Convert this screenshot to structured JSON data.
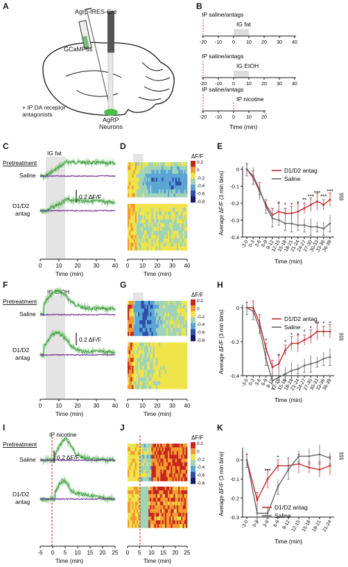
{
  "panel_letters": [
    "A",
    "B",
    "C",
    "D",
    "E",
    "F",
    "G",
    "H",
    "I",
    "J",
    "K"
  ],
  "panel_a": {
    "mouse_line": "Agrp-IRES-Cre",
    "virus": "GCaMP6s",
    "treatment": "+ IP DA receptor antagonists",
    "neurons_line1": "AgRP",
    "neurons_line2": "Neurons"
  },
  "panel_b": {
    "timelines": [
      {
        "pre": "IP saline/antags",
        "stim": "IG fat"
      },
      {
        "pre": "IP saline/antags",
        "stim": "IG EtOH"
      },
      {
        "pre": "IP saline/antags",
        "stim": "IP nicotine"
      }
    ],
    "ticks": [
      "-20",
      "-10",
      "0",
      "10",
      "20",
      "30",
      "40"
    ],
    "ticks_short": [
      "-20",
      "-10",
      "0",
      "10",
      "20"
    ],
    "xlabel": "Time (min)"
  },
  "traces": {
    "pretreatment": "Pretreatment",
    "saline": "Saline",
    "antag_line1": "D1/D2",
    "antag_line2": "antag",
    "scale": "0.2 ΔF/F",
    "xlabel": "Time (min)",
    "c_stim": "IG fat",
    "f_stim": "IG EtOH",
    "i_stim": "IP nicotine",
    "ticks_40": [
      "0",
      "10",
      "20",
      "30",
      "40"
    ],
    "ticks_25": [
      "-5",
      "0",
      "5",
      "10",
      "15",
      "20",
      "25"
    ]
  },
  "heatmaps": {
    "label": "ΔF/F",
    "scale_ticks": [
      "0.2",
      "0",
      "-0.2",
      "-0.4",
      "-0.6",
      "-0.8"
    ],
    "xlabel": "Time (min)",
    "ticks_40": [
      "0",
      "10",
      "20",
      "30",
      "40"
    ],
    "ticks_25": [
      "0",
      "5",
      "10",
      "15",
      "20",
      "25"
    ]
  },
  "stats": {
    "ylabel": "Average ΔF/F (3 min bins)",
    "xlabel": "Time (min)",
    "sig": "§§§",
    "legend_antag": "D1/D2 antag",
    "legend_saline": "Saline",
    "colors": {
      "antag": "#c0272d",
      "saline": "#666666",
      "purple": "#7b3fa0",
      "green": "#3f9a3f"
    }
  },
  "chart_data": [
    {
      "type": "line",
      "panel": "E",
      "categories": [
        "-3-0",
        "0-3",
        "3-6",
        "6-9",
        "9-12",
        "12-15",
        "15-18",
        "18-21",
        "21-24",
        "24-27",
        "27-30",
        "30-33",
        "33-36",
        "36-39"
      ],
      "ylim": [
        -0.4,
        0.0
      ],
      "yticks": [
        "0",
        "-0.1",
        "-0.2",
        "-0.3",
        "-0.4"
      ],
      "series": [
        {
          "name": "D1/D2 antag",
          "values": [
            0,
            -0.05,
            -0.13,
            -0.21,
            -0.27,
            -0.25,
            -0.26,
            -0.26,
            -0.25,
            -0.23,
            -0.21,
            -0.19,
            -0.21,
            -0.18
          ]
        },
        {
          "name": "Saline",
          "values": [
            0,
            -0.04,
            -0.12,
            -0.22,
            -0.29,
            -0.3,
            -0.32,
            -0.32,
            -0.33,
            -0.33,
            -0.34,
            -0.34,
            -0.35,
            -0.32
          ]
        }
      ],
      "annotations": [
        "",
        "",
        "",
        "",
        "",
        "*",
        "*",
        "*",
        "*",
        "**",
        "***",
        "***",
        "***",
        "***"
      ]
    },
    {
      "type": "line",
      "panel": "H",
      "categories": [
        "-3-0",
        "0-3",
        "3-6",
        "6-9",
        "9-12",
        "12-15",
        "15-18",
        "18-21",
        "21-24",
        "24-27",
        "27-30",
        "30-33",
        "33-36",
        "36-39"
      ],
      "ylim": [
        -0.4,
        0.0
      ],
      "yticks": [
        "0",
        "-0.2",
        "-0.4"
      ],
      "series": [
        {
          "name": "D1/D2 antag",
          "values": [
            0,
            0,
            -0.09,
            -0.24,
            -0.35,
            -0.33,
            -0.25,
            -0.21,
            -0.21,
            -0.19,
            -0.17,
            -0.14,
            -0.14,
            -0.14
          ]
        },
        {
          "name": "Saline",
          "values": [
            0,
            -0.02,
            -0.12,
            -0.3,
            -0.43,
            -0.41,
            -0.39,
            -0.37,
            -0.36,
            -0.34,
            -0.33,
            -0.32,
            -0.3,
            -0.29
          ]
        }
      ],
      "annotations": [
        "",
        "",
        "",
        "*",
        "",
        "*",
        "*",
        "*",
        "*",
        "*",
        "*",
        "**",
        "*",
        "*"
      ]
    },
    {
      "type": "line",
      "panel": "K",
      "categories": [
        "-3-0",
        "0-3",
        "3-6",
        "6-9",
        "9-12",
        "12-15",
        "15-18",
        "18-21",
        "21-24"
      ],
      "ylim": [
        -0.3,
        0.05
      ],
      "yticks": [
        "0",
        "-0.1",
        "-0.2",
        "-0.3"
      ],
      "series": [
        {
          "name": "D1/D2 antag",
          "values": [
            0,
            -0.21,
            -0.1,
            -0.03,
            -0.03,
            -0.02,
            -0.04,
            -0.05,
            -0.03
          ]
        },
        {
          "name": "Saline",
          "values": [
            0,
            -0.28,
            -0.28,
            -0.14,
            -0.05,
            0.02,
            0.02,
            0.03,
            0.01
          ]
        }
      ],
      "annotations": [
        "",
        "",
        "***",
        "*",
        "",
        "",
        "",
        "",
        ""
      ]
    }
  ]
}
